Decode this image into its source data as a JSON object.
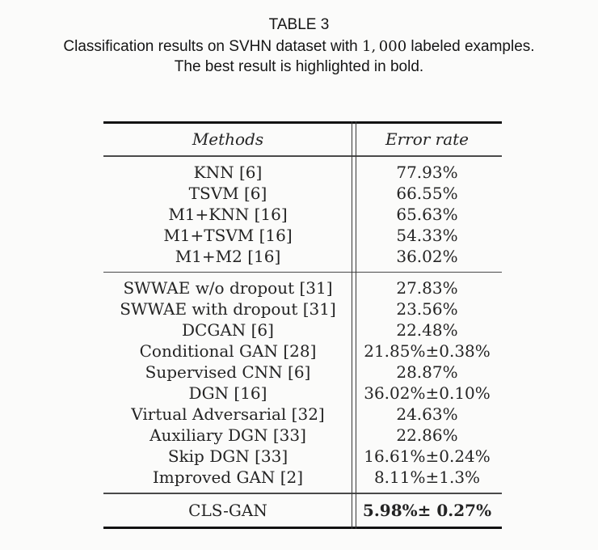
{
  "caption": {
    "label": "TABLE 3",
    "line1_prefix": "Classification results on SVHN dataset with ",
    "line1_number": "1, 000",
    "line1_suffix": " labeled examples.",
    "line2": "The best result is highlighted in bold."
  },
  "table": {
    "header": {
      "methods": "Methods",
      "error_rate": "Error rate"
    },
    "sections": [
      {
        "rows": [
          {
            "method": "KNN [6]",
            "error": "77.93%"
          },
          {
            "method": "TSVM [6]",
            "error": "66.55%"
          },
          {
            "method": "M1+KNN [16]",
            "error": "65.63%"
          },
          {
            "method": "M1+TSVM [16]",
            "error": "54.33%"
          },
          {
            "method": "M1+M2 [16]",
            "error": "36.02%"
          }
        ]
      },
      {
        "rows": [
          {
            "method": "SWWAE w/o dropout [31]",
            "error": "27.83%"
          },
          {
            "method": "SWWAE with dropout [31]",
            "error": "23.56%"
          },
          {
            "method": "DCGAN [6]",
            "error": "22.48%"
          },
          {
            "method": "Conditional GAN [28]",
            "error": "21.85%±0.38%"
          },
          {
            "method": "Supervised CNN [6]",
            "error": "28.87%"
          },
          {
            "method": "DGN [16]",
            "error": "36.02%±0.10%"
          },
          {
            "method": "Virtual Adversarial [32]",
            "error": "24.63%"
          },
          {
            "method": "Auxiliary DGN [33]",
            "error": "22.86%"
          },
          {
            "method": "Skip DGN [33]",
            "error": "16.61%±0.24%"
          },
          {
            "method": "Improved GAN [2]",
            "error": "8.11%±1.3%"
          }
        ]
      },
      {
        "rows": [
          {
            "method": "CLS-GAN",
            "error": "5.98%± 0.27%"
          }
        ]
      }
    ]
  }
}
